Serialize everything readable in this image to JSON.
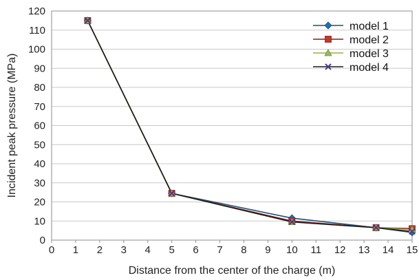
{
  "chart_data": {
    "type": "line",
    "title": "",
    "xlabel": "Distance from the center of the charge (m)",
    "ylabel": "Incident peak pressure (MPa)",
    "xlim": [
      0,
      15
    ],
    "ylim": [
      0,
      120
    ],
    "x_ticks": [
      "0",
      "1",
      "2",
      "3",
      "4",
      "5",
      "6",
      "7",
      "8",
      "9",
      "10",
      "11",
      "12",
      "13",
      "14",
      "15"
    ],
    "y_ticks": [
      "0",
      "10",
      "20",
      "30",
      "40",
      "50",
      "60",
      "70",
      "80",
      "90",
      "100",
      "110",
      "120"
    ],
    "grid": "horizontal",
    "legend_position": "top-right",
    "x": [
      1.5,
      5,
      10,
      13.5,
      15
    ],
    "series": [
      {
        "name": "model 1",
        "values": [
          115,
          24.5,
          11.5,
          6.5,
          4.0
        ],
        "color": "#1f4e79",
        "line_color": "#1f4e79",
        "marker": "diamond",
        "marker_color": "#1f6fb3"
      },
      {
        "name": "model 2",
        "values": [
          115,
          24.5,
          10.0,
          6.5,
          6.0
        ],
        "color": "#c0392b",
        "line_color": "#8b1a1a",
        "marker": "square",
        "marker_color": "#c0392b"
      },
      {
        "name": "model 3",
        "values": [
          115,
          24.5,
          9.5,
          6.5,
          5.5
        ],
        "color": "#9bbb59",
        "line_color": "#8fb04a",
        "marker": "triangle",
        "marker_color": "#9bbb59"
      },
      {
        "name": "model 4",
        "values": [
          115,
          24.5,
          9.5,
          6.5,
          4.5
        ],
        "color": "#4b3a8c",
        "line_color": "#1a1a1a",
        "marker": "x",
        "marker_color": "#4b3a8c"
      }
    ]
  }
}
